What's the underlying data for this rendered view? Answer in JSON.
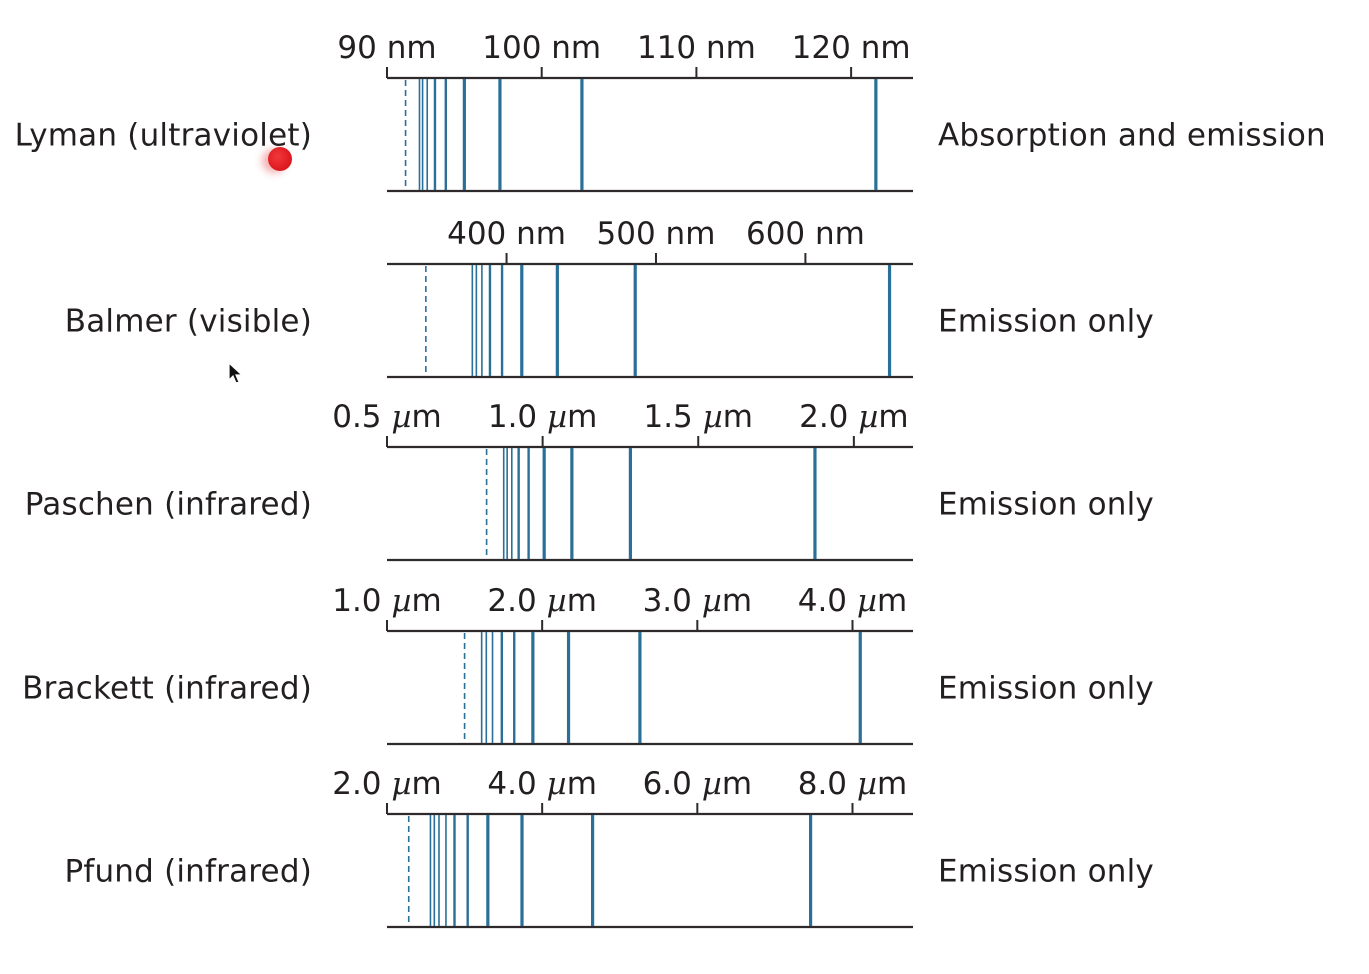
{
  "colors": {
    "line": "#2a6f97",
    "axis": "#2e2a2b",
    "text": "#231f20",
    "marker": "#e01e23"
  },
  "series": [
    {
      "name": "Lyman (ultraviolet)",
      "note": "Absorption and emission",
      "unit": "nm",
      "ticks": [
        {
          "value": 90,
          "label": "90 nm"
        },
        {
          "value": 100,
          "label": "100 nm"
        },
        {
          "value": 110,
          "label": "110 nm"
        },
        {
          "value": 120,
          "label": "120 nm"
        }
      ],
      "range": [
        90,
        124
      ],
      "limit": 91.2,
      "lines": [
        121.6,
        102.6,
        97.3,
        95.0,
        93.8,
        93.1,
        92.6,
        92.3,
        92.1
      ]
    },
    {
      "name": "Balmer (visible)",
      "note": "Emission only",
      "unit": "nm",
      "ticks": [
        {
          "value": 400,
          "label": "400 nm"
        },
        {
          "value": 500,
          "label": "500 nm"
        },
        {
          "value": 600,
          "label": "600 nm"
        }
      ],
      "range": [
        320,
        672
      ],
      "limit": 346,
      "lines": [
        656.3,
        486.1,
        434.0,
        410.2,
        397.0,
        388.9,
        383.5,
        379.8,
        377.1
      ]
    },
    {
      "name": "Paschen (infrared)",
      "note": "Emission only",
      "unit": "µm",
      "ticks": [
        {
          "value": 0.5,
          "label": "0.5 µm"
        },
        {
          "value": 1.0,
          "label": "1.0 µm"
        },
        {
          "value": 1.5,
          "label": "1.5 µm"
        },
        {
          "value": 2.0,
          "label": "2.0 µm"
        }
      ],
      "range": [
        0.5,
        2.19
      ],
      "limit": 0.82,
      "lines": [
        1.875,
        1.282,
        1.094,
        1.005,
        0.955,
        0.923,
        0.901,
        0.886,
        0.875
      ]
    },
    {
      "name": "Brackett (infrared)",
      "note": "Emission only",
      "unit": "µm",
      "ticks": [
        {
          "value": 1.0,
          "label": "1.0 µm"
        },
        {
          "value": 2.0,
          "label": "2.0 µm"
        },
        {
          "value": 3.0,
          "label": "3.0 µm"
        },
        {
          "value": 4.0,
          "label": "4.0 µm"
        }
      ],
      "range": [
        1.0,
        4.39
      ],
      "limit": 1.5,
      "lines": [
        4.05,
        2.63,
        2.17,
        1.94,
        1.82,
        1.74,
        1.68,
        1.64,
        1.61
      ]
    },
    {
      "name": "Pfund (infrared)",
      "note": "Emission only",
      "unit": "µm",
      "ticks": [
        {
          "value": 2.0,
          "label": "2.0 µm"
        },
        {
          "value": 4.0,
          "label": "4.0 µm"
        },
        {
          "value": 6.0,
          "label": "6.0 µm"
        },
        {
          "value": 8.0,
          "label": "8.0 µm"
        }
      ],
      "range": [
        2.0,
        8.78
      ],
      "limit": 2.28,
      "lines": [
        7.46,
        4.65,
        3.74,
        3.3,
        3.04,
        2.87,
        2.76,
        2.67,
        2.61,
        2.56
      ]
    }
  ]
}
